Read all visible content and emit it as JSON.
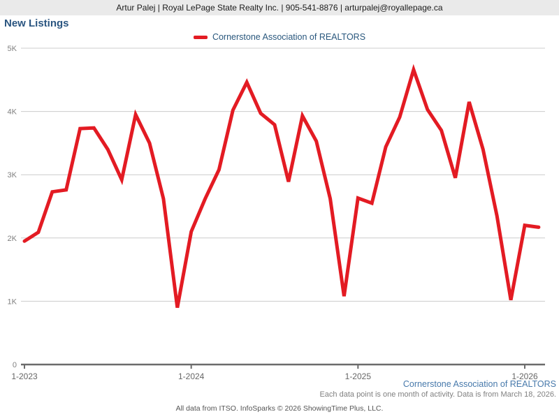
{
  "header": {
    "contact_line": "Artur Palej | Royal LePage State Realty Inc. | 905-541-8876 | arturpalej@royallepage.ca"
  },
  "title": "New Listings",
  "legend": {
    "label": "Cornerstone Association of REALTORS",
    "color": "#e31b23"
  },
  "chart_data": {
    "type": "line",
    "title": "New Listings",
    "x_unit": "month",
    "x_start_label": "1-2023",
    "x_tick_labels": [
      "1-2023",
      "1-2024",
      "1-2025",
      "1-2026"
    ],
    "x_tick_month_indices": [
      0,
      12,
      24,
      36
    ],
    "y_tick_labels": [
      "0",
      "1K",
      "2K",
      "3K",
      "4K",
      "5K"
    ],
    "ylim": [
      0,
      5000
    ],
    "grid": "horizontal",
    "legend_position": "top-center",
    "series": [
      {
        "name": "Cornerstone Association of REALTORS",
        "color": "#e31b23",
        "values": [
          1950,
          2090,
          2730,
          2760,
          3730,
          3740,
          3400,
          2920,
          3950,
          3500,
          2620,
          900,
          2100,
          2620,
          3080,
          4020,
          4460,
          3970,
          3790,
          2890,
          3930,
          3530,
          2620,
          1080,
          2630,
          2550,
          3440,
          3910,
          4660,
          4030,
          3700,
          2950,
          4150,
          3400,
          2350,
          1020,
          2200,
          2170
        ]
      }
    ]
  },
  "footer": {
    "source_link": "Cornerstone Association of REALTORS",
    "note": "Each data point is one month of activity. Data is from March 18, 2026.",
    "credit": "All data from ITSO. InfoSparks © 2026 ShowingTime Plus, LLC."
  }
}
